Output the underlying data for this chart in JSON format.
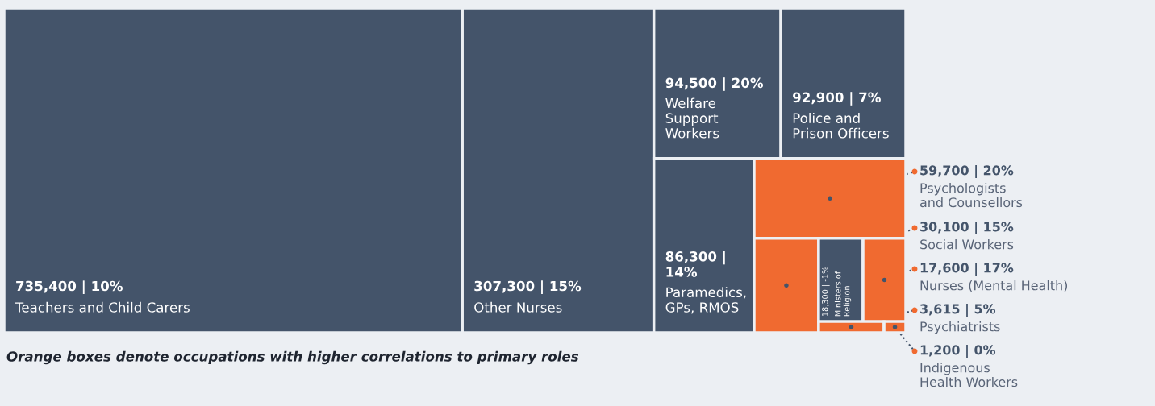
{
  "chart_data": {
    "type": "other",
    "categories": [
      "Teachers and Child Carers",
      "Other Nurses",
      "Welfare\nSupport\nWorkers",
      "Police and\nPrison Officers",
      "Paramedics,\nGPs, RMOS",
      "Psychologists\nand Counsellors",
      "Social Workers",
      "Ministers of\nReligion",
      "Nurses (Mental Health)",
      "Psychiatrists",
      "Indigenous\nHealth Workers"
    ],
    "values": [
      735400,
      307300,
      94500,
      92900,
      86300,
      59700,
      30100,
      18300,
      17600,
      3615,
      1200
    ],
    "value_labels": [
      "735,400 | 10%",
      "307,300 | 15%",
      "94,500 | 20%",
      "92,900 | 7%",
      "86,300 |\n14%",
      "59,700 | 20%",
      "30,100 | 15%",
      "18,300 | -1%",
      "17,600 | 17%",
      "3,615 | 5%",
      "1,200 | 0%"
    ],
    "colors": [
      "#44546a",
      "#44546a",
      "#44546a",
      "#44546a",
      "#44546a",
      "#f06a30",
      "#f06a30",
      "#44546a",
      "#f06a30",
      "#f06a30",
      "#f06a30"
    ],
    "annotations": [
      "Orange boxes denote occupations with higher correlations to primary roles"
    ]
  }
}
